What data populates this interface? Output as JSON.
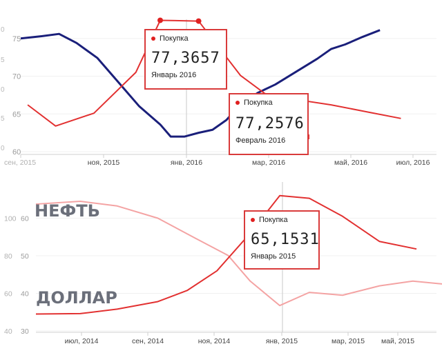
{
  "chart_data": [
    {
      "type": "line",
      "x_tick_labels": [
        "сен, 2015",
        "ноя, 2015",
        "янв, 2016",
        "мар, 2016",
        "май, 2016",
        "июл, 2016"
      ],
      "y_left_ticks": [
        "75",
        "70",
        "65",
        "60"
      ],
      "y_far_left_ticks": [
        "0",
        "5",
        "0",
        "5",
        "0"
      ],
      "series": [
        {
          "color": "#1a1f7a",
          "points": [
            [
              0,
              75.0
            ],
            [
              0.6,
              75.3
            ],
            [
              1.1,
              75.6
            ],
            [
              1.6,
              74.4
            ],
            [
              2.2,
              72.4
            ],
            [
              2.8,
              69.2
            ],
            [
              3.4,
              66.0
            ],
            [
              4.0,
              63.6
            ],
            [
              4.3,
              62.0
            ],
            [
              4.7,
              62.0
            ],
            [
              5.1,
              62.5
            ],
            [
              5.5,
              62.9
            ],
            [
              5.9,
              64.2
            ],
            [
              6.3,
              66.3
            ],
            [
              6.8,
              67.8
            ],
            [
              7.3,
              68.9
            ],
            [
              7.9,
              70.6
            ],
            [
              8.5,
              72.3
            ],
            [
              8.9,
              73.6
            ],
            [
              9.3,
              74.2
            ],
            [
              9.8,
              75.2
            ],
            [
              10.3,
              76.1
            ]
          ]
        },
        {
          "color": "#e23030",
          "points": [
            [
              0.2,
              66.2
            ],
            [
              1.0,
              63.4
            ],
            [
              2.1,
              65.1
            ],
            [
              3.3,
              70.5
            ],
            [
              4.0,
              77.4
            ],
            [
              5.1,
              77.3
            ],
            [
              6.3,
              70.1
            ],
            [
              7.0,
              67.7
            ],
            [
              7.9,
              66.9
            ],
            [
              8.9,
              66.2
            ],
            [
              9.9,
              65.3
            ],
            [
              10.9,
              64.4
            ]
          ]
        }
      ],
      "tooltips": [
        {
          "label": "Покупка",
          "value": "77,3657",
          "date": "Январь 2016"
        },
        {
          "label": "Покупка",
          "value": "77,2576",
          "date": "Февраль 2016"
        }
      ]
    },
    {
      "type": "line",
      "x_tick_labels": [
        "июл, 2014",
        "сен, 2014",
        "ноя, 2014",
        "янв, 2015",
        "мар, 2015",
        "май, 2015"
      ],
      "y_left_ticks": [
        "100",
        "80",
        "60",
        "40"
      ],
      "y_right_ticks": [
        "60",
        "50",
        "40",
        "30"
      ],
      "series": [
        {
          "name": "НЕФТЬ",
          "color": "#f4a3a3",
          "points": [
            [
              0,
              107.5
            ],
            [
              1.2,
              109.0
            ],
            [
              2.2,
              106.5
            ],
            [
              3.3,
              100.0
            ],
            [
              4.3,
              89.5
            ],
            [
              5.2,
              80.2
            ],
            [
              5.8,
              66.5
            ],
            [
              6.6,
              53.5
            ],
            [
              7.4,
              60.5
            ],
            [
              8.3,
              59.0
            ],
            [
              9.3,
              64.0
            ],
            [
              10.2,
              66.5
            ],
            [
              11.0,
              65.0
            ]
          ]
        },
        {
          "name": "ДОЛЛАР",
          "color": "#e23030",
          "points": [
            [
              0,
              34.5
            ],
            [
              1.2,
              34.6
            ],
            [
              2.2,
              35.8
            ],
            [
              3.3,
              37.8
            ],
            [
              4.1,
              40.8
            ],
            [
              4.9,
              46.0
            ],
            [
              5.8,
              56.0
            ],
            [
              6.6,
              66.0
            ],
            [
              7.4,
              65.3
            ],
            [
              8.3,
              60.5
            ],
            [
              9.3,
              53.8
            ],
            [
              10.3,
              51.8
            ]
          ]
        }
      ],
      "tooltips": [
        {
          "label": "Покупка",
          "value": "65,1531",
          "date": "Январь 2015"
        }
      ]
    }
  ],
  "labels": {
    "oil": "НЕФТЬ",
    "dollar": "ДОЛЛАР"
  }
}
